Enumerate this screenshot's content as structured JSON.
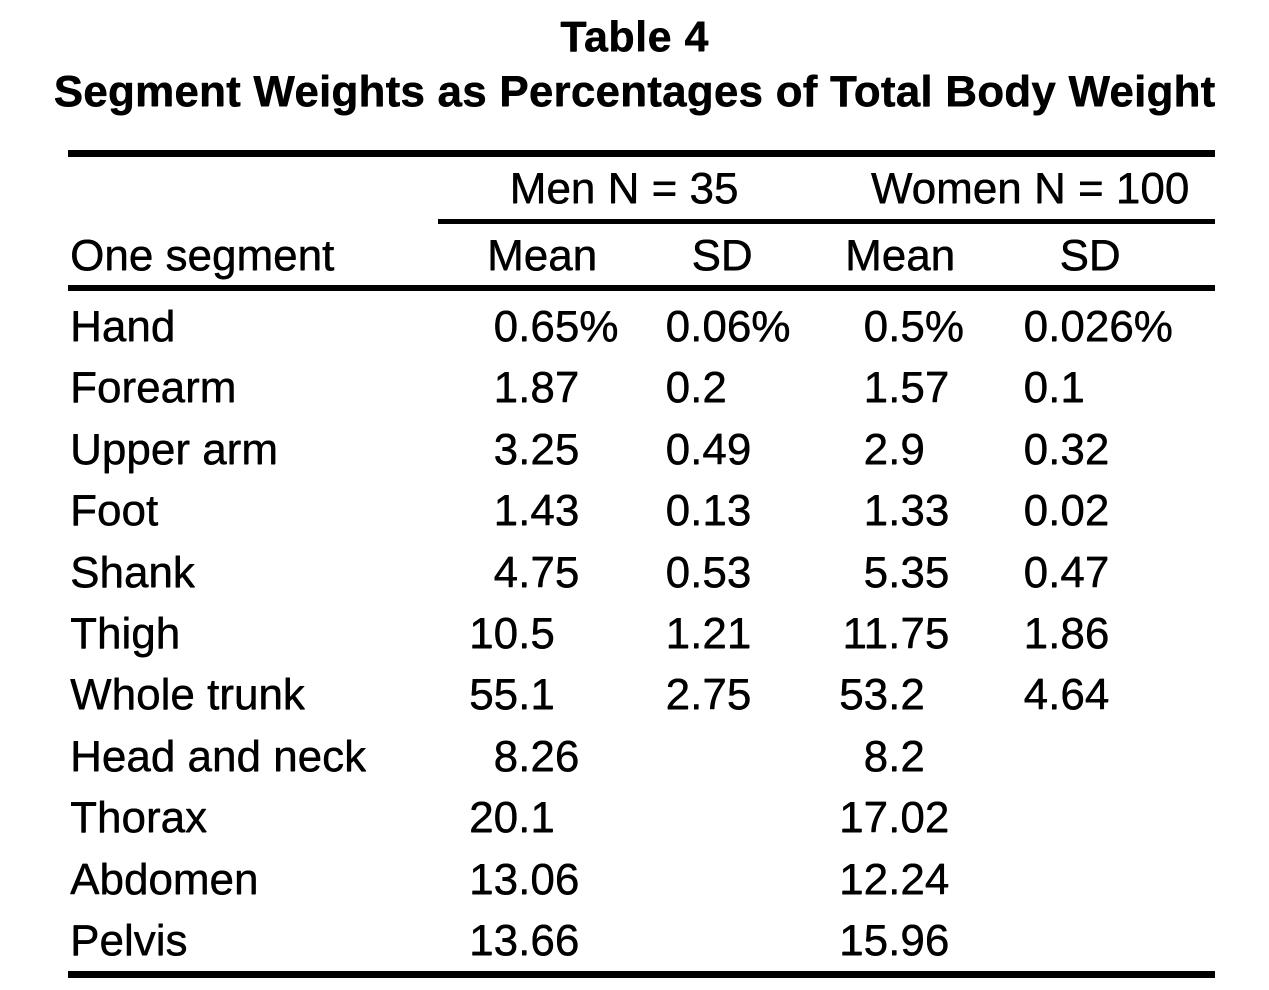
{
  "title": {
    "label": "Table 4",
    "subtitle": "Segment Weights as Percentages of Total Body Weight"
  },
  "table": {
    "group_headers": [
      {
        "label": "Men N = 35"
      },
      {
        "label": "Women N = 100"
      }
    ],
    "column_headers": [
      "One segment",
      "Mean",
      "SD",
      "Mean",
      "SD"
    ],
    "rows": [
      {
        "segment": "Hand",
        "men_mean": "0.65%",
        "men_sd": "0.06%",
        "women_mean": "0.5%",
        "women_sd": "0.026%"
      },
      {
        "segment": "Forearm",
        "men_mean": "1.87",
        "men_sd": "0.2",
        "women_mean": "1.57",
        "women_sd": "0.1"
      },
      {
        "segment": "Upper arm",
        "men_mean": "3.25",
        "men_sd": "0.49",
        "women_mean": "2.9",
        "women_sd": "0.32"
      },
      {
        "segment": "Foot",
        "men_mean": "1.43",
        "men_sd": "0.13",
        "women_mean": "1.33",
        "women_sd": "0.02"
      },
      {
        "segment": "Shank",
        "men_mean": "4.75",
        "men_sd": "0.53",
        "women_mean": "5.35",
        "women_sd": "0.47"
      },
      {
        "segment": "Thigh",
        "men_mean": "10.5",
        "men_sd": "1.21",
        "women_mean": "11.75",
        "women_sd": "1.86"
      },
      {
        "segment": "Whole trunk",
        "men_mean": "55.1",
        "men_sd": "2.75",
        "women_mean": "53.2",
        "women_sd": "4.64"
      },
      {
        "segment": "Head and neck",
        "men_mean": "8.26",
        "men_sd": "",
        "women_mean": "8.2",
        "women_sd": ""
      },
      {
        "segment": "Thorax",
        "men_mean": "20.1",
        "men_sd": "",
        "women_mean": "17.02",
        "women_sd": ""
      },
      {
        "segment": "Abdomen",
        "men_mean": "13.06",
        "men_sd": "",
        "women_mean": "12.24",
        "women_sd": ""
      },
      {
        "segment": "Pelvis",
        "men_mean": "13.66",
        "men_sd": "",
        "women_mean": "15.96",
        "women_sd": ""
      }
    ]
  },
  "colors": {
    "ink": "#000000",
    "paper": "#ffffff"
  }
}
